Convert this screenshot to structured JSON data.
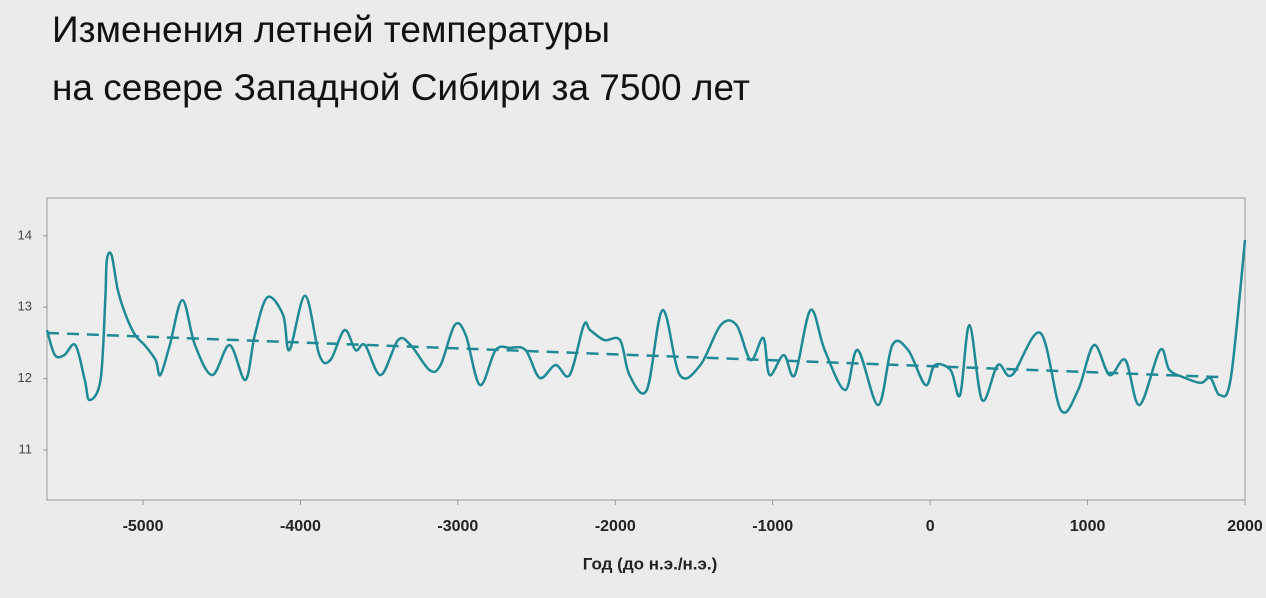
{
  "chart_data": {
    "type": "line",
    "title": [
      "Изменения летней температуры",
      "на севере Западной Сибири за 7500 лет"
    ],
    "x_label": "Год (до н.э./н.э.)",
    "xlim": [
      -5610,
      2000
    ],
    "xticks": [
      -5000,
      -4000,
      -3000,
      -2000,
      -1000,
      0,
      1000,
      2000
    ],
    "ylim": [
      10.3,
      14.53
    ],
    "yticks": [
      11,
      12,
      13,
      14
    ],
    "series": [
      {
        "color": "#1f8a96",
        "dashed": false,
        "x": [
          -5610,
          -5560,
          -5500,
          -5430,
          -5370,
          -5340,
          -5270,
          -5240,
          -5230,
          -5200,
          -5160,
          -5110,
          -5050,
          -4990,
          -4920,
          -4890,
          -4830,
          -4750,
          -4670,
          -4560,
          -4450,
          -4350,
          -4290,
          -4210,
          -4110,
          -4070,
          -3970,
          -3880,
          -3810,
          -3720,
          -3650,
          -3590,
          -3490,
          -3380,
          -3300,
          -3180,
          -3110,
          -3020,
          -2950,
          -2860,
          -2760,
          -2670,
          -2570,
          -2480,
          -2380,
          -2290,
          -2200,
          -2160,
          -2070,
          -1970,
          -1910,
          -1800,
          -1700,
          -1590,
          -1460,
          -1330,
          -1230,
          -1140,
          -1060,
          -1020,
          -930,
          -860,
          -760,
          -670,
          -540,
          -460,
          -330,
          -240,
          -140,
          -30,
          30,
          130,
          190,
          250,
          330,
          430,
          520,
          700,
          830,
          940,
          1040,
          1140,
          1240,
          1330,
          1460,
          1520,
          1620,
          1720,
          1780,
          1840,
          1910,
          2000
        ],
        "values": [
          12.68,
          12.33,
          12.33,
          12.47,
          11.98,
          11.7,
          11.98,
          13.1,
          13.66,
          13.73,
          13.24,
          12.89,
          12.61,
          12.47,
          12.26,
          12.05,
          12.47,
          13.1,
          12.47,
          12.05,
          12.47,
          11.98,
          12.61,
          13.14,
          12.89,
          12.4,
          13.16,
          12.33,
          12.26,
          12.68,
          12.4,
          12.47,
          12.05,
          12.54,
          12.47,
          12.12,
          12.19,
          12.75,
          12.61,
          11.91,
          12.4,
          12.43,
          12.4,
          12.01,
          12.19,
          12.05,
          12.75,
          12.68,
          12.54,
          12.54,
          12.05,
          11.84,
          12.96,
          12.05,
          12.19,
          12.75,
          12.75,
          12.26,
          12.57,
          12.05,
          12.33,
          12.05,
          12.96,
          12.4,
          11.84,
          12.4,
          11.63,
          12.47,
          12.4,
          11.91,
          12.19,
          12.12,
          11.77,
          12.75,
          11.7,
          12.19,
          12.05,
          12.64,
          11.56,
          11.84,
          12.47,
          12.05,
          12.26,
          11.63,
          12.4,
          12.12,
          12.01,
          11.94,
          12.01,
          11.77,
          12.01,
          13.94
        ]
      },
      {
        "color": "#1f8a96",
        "dashed": true,
        "x": [
          -5610,
          1860
        ],
        "values": [
          12.64,
          12.02
        ]
      }
    ]
  }
}
